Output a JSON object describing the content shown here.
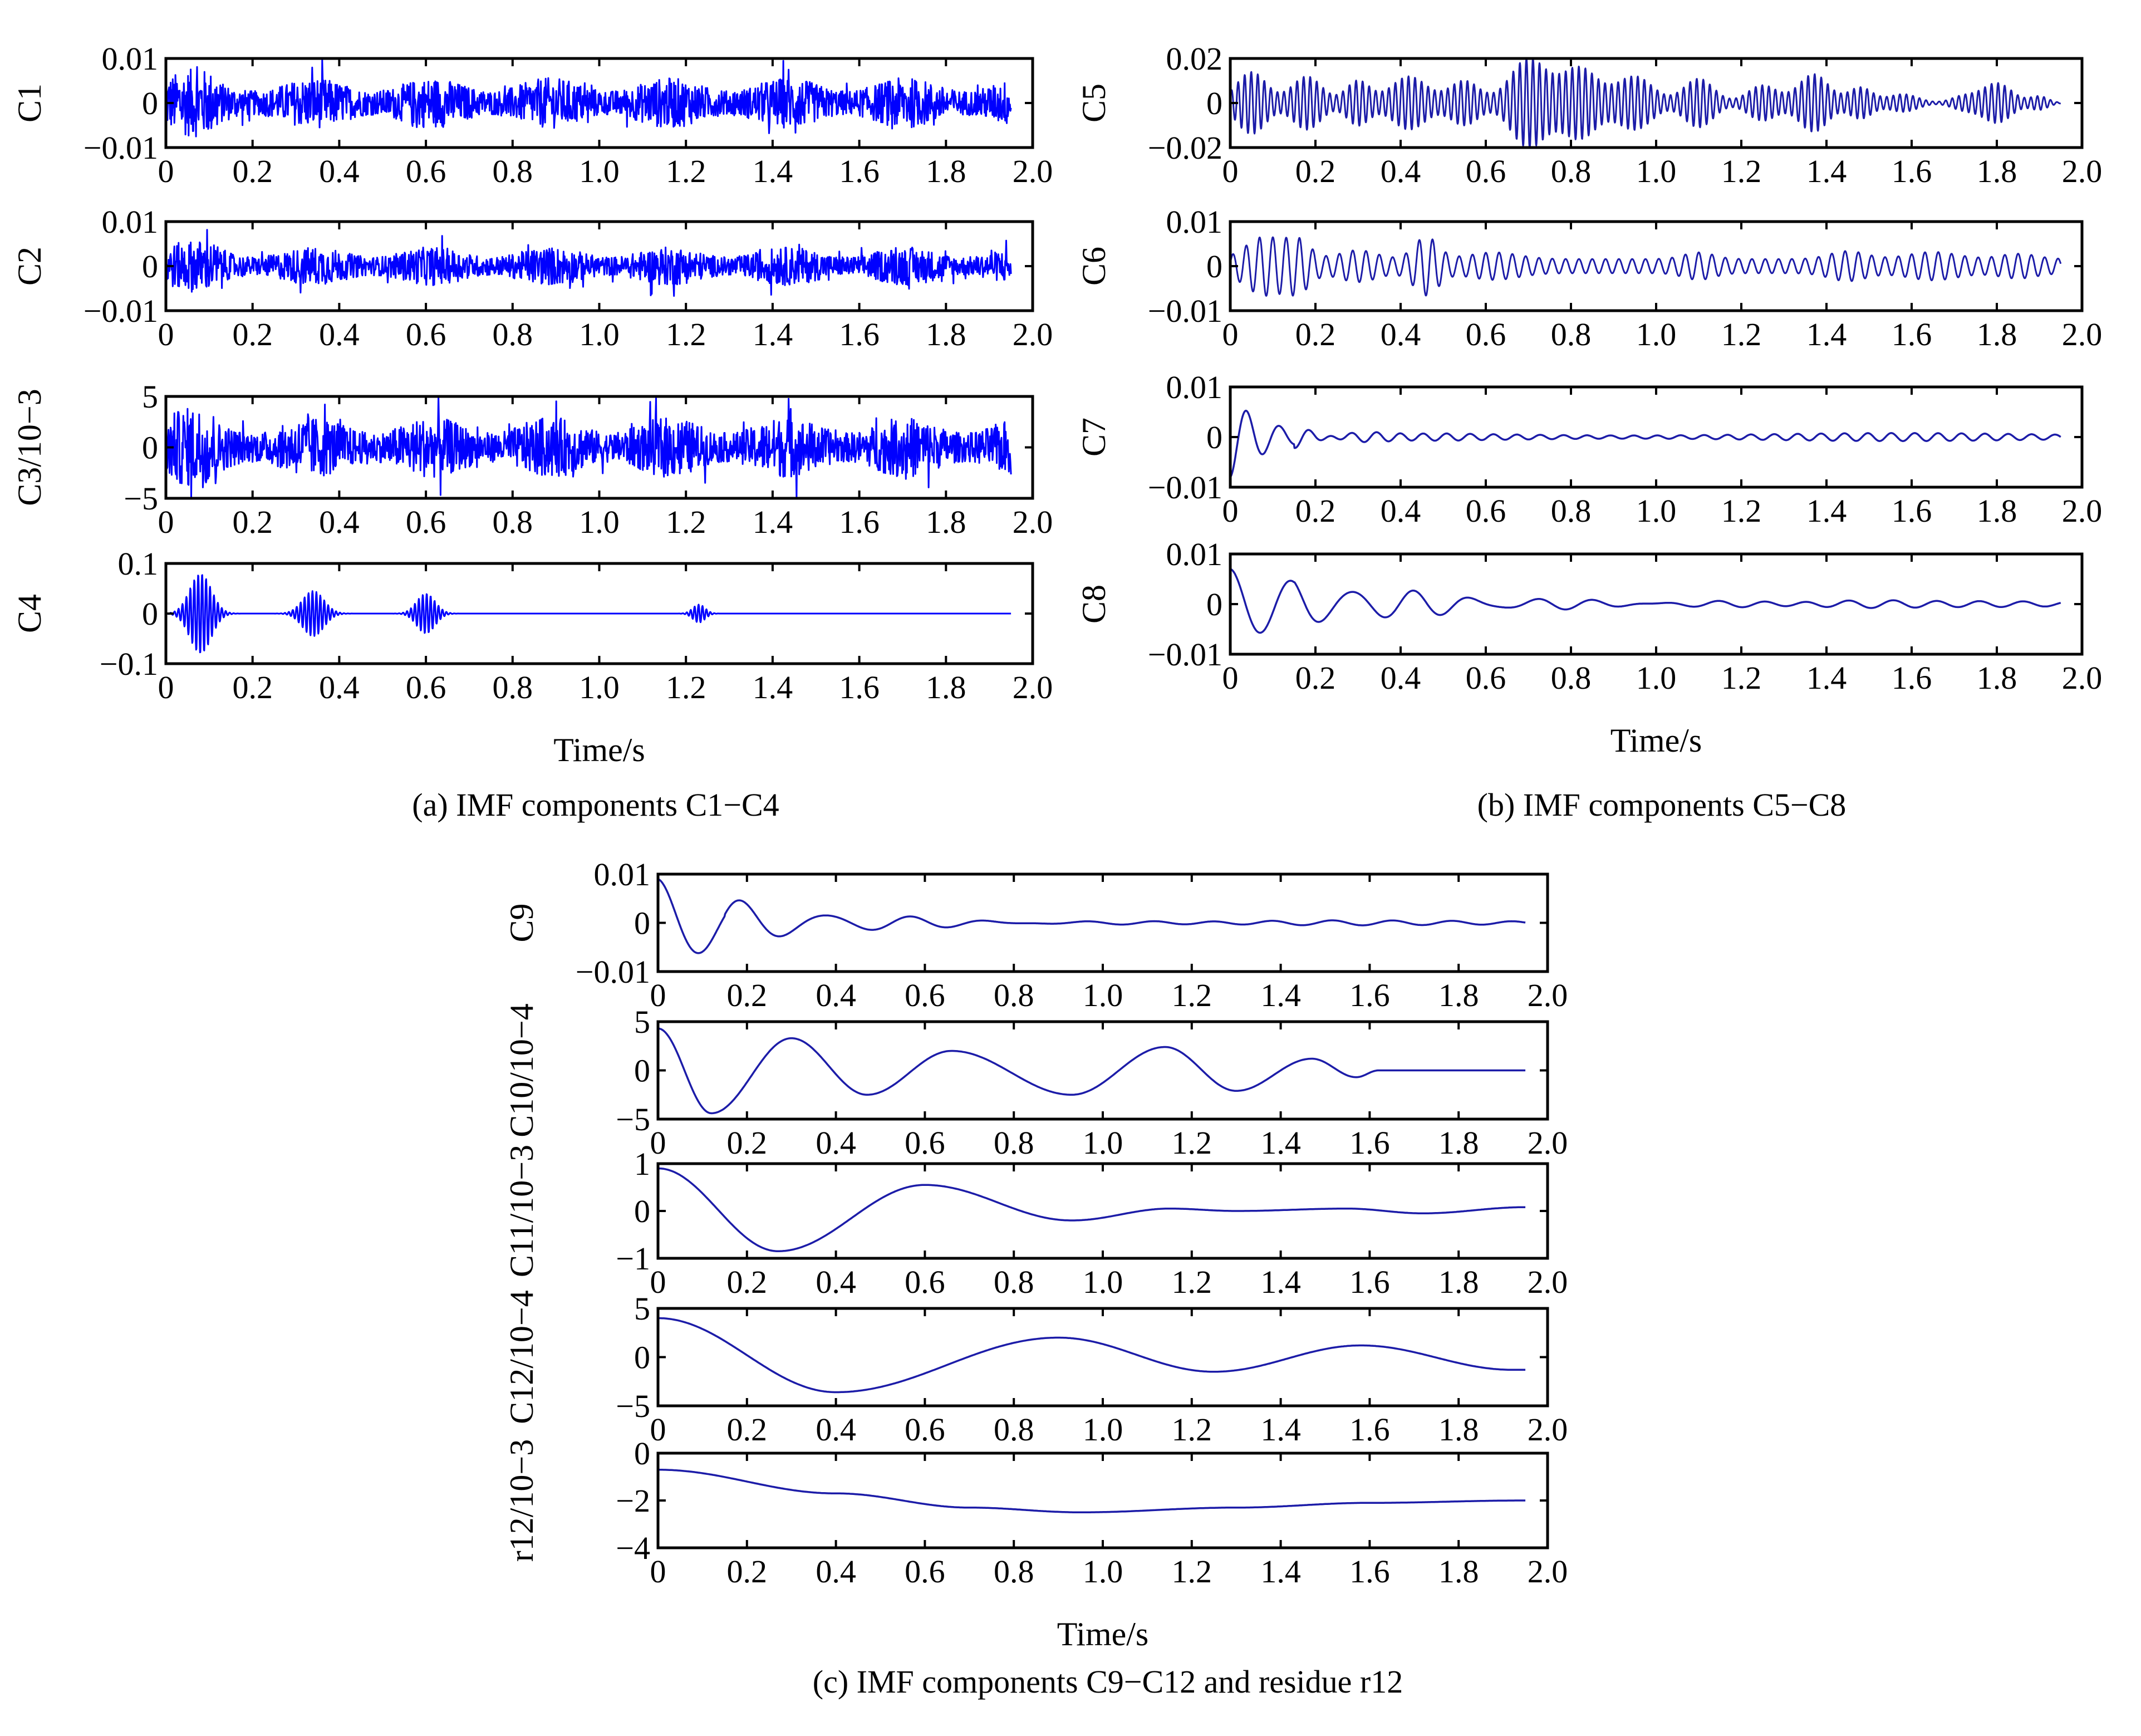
{
  "figure": {
    "captions": [
      "(a) IMF components C1−C4",
      "(b) IMF components C5−C8",
      "(c) IMF components C9−C12 and residue r12"
    ],
    "xlabel": "Time/s"
  },
  "colors": {
    "signal_bright": "#0000ff",
    "signal_dark": "#1c1ca8",
    "axis": "#000000"
  },
  "chart_data": [
    {
      "type": "line",
      "group": "a",
      "ylabel": "C1",
      "yticks": [
        "0.01",
        "0",
        "−0.01"
      ],
      "ylim": [
        -0.01,
        0.01
      ],
      "xlim": [
        0,
        2
      ],
      "xticks": [
        "0",
        "0.2",
        "0.4",
        "0.6",
        "0.8",
        "1.0",
        "1.2",
        "1.4",
        "1.6",
        "1.8",
        "2.0"
      ],
      "color": "#0000ff",
      "style": "noise",
      "amp": 0.0042,
      "xlabel": ""
    },
    {
      "type": "line",
      "group": "a",
      "ylabel": "C2",
      "yticks": [
        "0.01",
        "0",
        "−0.01"
      ],
      "ylim": [
        -0.01,
        0.01
      ],
      "xlim": [
        0,
        2
      ],
      "xticks": [
        "0",
        "0.2",
        "0.4",
        "0.6",
        "0.8",
        "1.0",
        "1.2",
        "1.4",
        "1.6",
        "1.8",
        "2.0"
      ],
      "color": "#0000ff",
      "style": "noise",
      "amp": 0.0032,
      "xlabel": ""
    },
    {
      "type": "line",
      "group": "a",
      "ylabel": "C3/10−3",
      "yticks": [
        "5",
        "0",
        "−5"
      ],
      "ylim": [
        -5,
        5
      ],
      "xlim": [
        0,
        2
      ],
      "xticks": [
        "0",
        "0.2",
        "0.4",
        "0.6",
        "0.8",
        "1.0",
        "1.2",
        "1.4",
        "1.6",
        "1.8",
        "2.0"
      ],
      "color": "#0000ff",
      "style": "noise",
      "amp": 2.2,
      "xlabel": ""
    },
    {
      "type": "line",
      "group": "a",
      "ylabel": "C4",
      "yticks": [
        "0.1",
        "0",
        "−0.1"
      ],
      "ylim": [
        -0.1,
        0.1
      ],
      "xlim": [
        0,
        2
      ],
      "xticks": [
        "0",
        "0.2",
        "0.4",
        "0.6",
        "0.8",
        "1.0",
        "1.2",
        "1.4",
        "1.6",
        "1.8",
        "2.0"
      ],
      "color": "#0000ff",
      "style": "bursts",
      "freq": 110,
      "bursts": [
        [
          0.08,
          0.035,
          0.08
        ],
        [
          0.34,
          0.035,
          0.045
        ],
        [
          0.6,
          0.03,
          0.04
        ],
        [
          1.23,
          0.02,
          0.018
        ]
      ],
      "xlabel": "Time/s"
    },
    {
      "type": "line",
      "group": "b",
      "ylabel": "C5",
      "yticks": [
        "0.02",
        "0",
        "−0.02"
      ],
      "ylim": [
        -0.02,
        0.02
      ],
      "xlim": [
        0,
        2
      ],
      "xticks": [
        "0",
        "0.2",
        "0.4",
        "0.6",
        "0.8",
        "1.0",
        "1.2",
        "1.4",
        "1.6",
        "1.8",
        "2.0"
      ],
      "color": "#1c1ca8",
      "style": "bursts",
      "freq": 65,
      "bursts": [
        [
          0.05,
          0.05,
          0.014
        ],
        [
          0.18,
          0.05,
          0.012
        ],
        [
          0.3,
          0.04,
          0.01
        ],
        [
          0.42,
          0.06,
          0.012
        ],
        [
          0.55,
          0.05,
          0.01
        ],
        [
          0.7,
          0.06,
          0.02
        ],
        [
          0.82,
          0.06,
          0.016
        ],
        [
          0.95,
          0.06,
          0.012
        ],
        [
          1.1,
          0.05,
          0.011
        ],
        [
          1.25,
          0.05,
          0.008
        ],
        [
          1.37,
          0.05,
          0.013
        ],
        [
          1.48,
          0.04,
          0.007
        ],
        [
          1.58,
          0.05,
          0.004
        ],
        [
          1.72,
          0.04,
          0.003
        ],
        [
          1.8,
          0.05,
          0.009
        ],
        [
          1.9,
          0.03,
          0.003
        ]
      ],
      "xlabel": ""
    },
    {
      "type": "line",
      "group": "b",
      "ylabel": "C6",
      "yticks": [
        "0.01",
        "0",
        "−0.01"
      ],
      "ylim": [
        -0.01,
        0.01
      ],
      "xlim": [
        0,
        2
      ],
      "xticks": [
        "0",
        "0.2",
        "0.4",
        "0.6",
        "0.8",
        "1.0",
        "1.2",
        "1.4",
        "1.6",
        "1.8",
        "2.0"
      ],
      "color": "#1c1ca8",
      "style": "bursts",
      "freq": 32,
      "base": 0.0016,
      "bursts": [
        [
          0.08,
          0.06,
          0.005
        ],
        [
          0.16,
          0.04,
          0.004
        ],
        [
          0.3,
          0.06,
          0.002
        ],
        [
          0.46,
          0.04,
          0.005
        ],
        [
          0.62,
          0.08,
          0.0015
        ],
        [
          1.1,
          0.05,
          0.0015
        ],
        [
          1.45,
          0.06,
          0.0018
        ],
        [
          1.65,
          0.08,
          0.0016
        ],
        [
          1.85,
          0.06,
          0.0012
        ]
      ],
      "xlabel": ""
    },
    {
      "type": "line",
      "group": "b",
      "ylabel": "C7",
      "yticks": [
        "0.01",
        "0",
        "−0.01"
      ],
      "ylim": [
        -0.01,
        0.01
      ],
      "xlim": [
        0,
        2
      ],
      "xticks": [
        "0",
        "0.2",
        "0.4",
        "0.6",
        "0.8",
        "1.0",
        "1.2",
        "1.4",
        "1.6",
        "1.8",
        "2.0"
      ],
      "color": "#1c1ca8",
      "style": "decay",
      "freq": 13,
      "a0": -0.008,
      "tau": 0.09,
      "tailamp": 0.0008,
      "xlabel": ""
    },
    {
      "type": "line",
      "group": "b",
      "ylabel": "C8",
      "yticks": [
        "0.01",
        "0",
        "−0.01"
      ],
      "ylim": [
        -0.01,
        0.01
      ],
      "xlim": [
        0,
        2
      ],
      "xticks": [
        "0",
        "0.2",
        "0.4",
        "0.6",
        "0.8",
        "1.0",
        "1.2",
        "1.4",
        "1.6",
        "1.8",
        "2.0"
      ],
      "color": "#1c1ca8",
      "style": "decay",
      "freq": 7,
      "a0": 0.007,
      "tau": 0.35,
      "tailamp": 0.0007,
      "xlabel": "Time/s"
    },
    {
      "type": "line",
      "group": "c",
      "ylabel": "C9",
      "yticks": [
        "0.01",
        "0",
        "−0.01"
      ],
      "ylim": [
        -0.01,
        0.01
      ],
      "xlim": [
        0,
        2
      ],
      "xticks": [
        "0",
        "0.2",
        "0.4",
        "0.6",
        "0.8",
        "1.0",
        "1.2",
        "1.4",
        "1.6",
        "1.8",
        "2.0"
      ],
      "color": "#1c1ca8",
      "style": "decay",
      "freq": 5.3,
      "a0": 0.009,
      "tau": 0.25,
      "tailamp": 0.0005,
      "xlabel": ""
    },
    {
      "type": "line",
      "group": "c",
      "ylabel": "C10/10−4",
      "yticks": [
        "5",
        "0",
        "−5"
      ],
      "ylim": [
        -5,
        5
      ],
      "xlim": [
        0,
        2
      ],
      "xticks": [
        "0",
        "0.2",
        "0.4",
        "0.6",
        "0.8",
        "1.0",
        "1.2",
        "1.4",
        "1.6",
        "1.8",
        "2.0"
      ],
      "color": "#1c1ca8",
      "style": "points",
      "x": [
        0,
        0.12,
        0.3,
        0.47,
        0.66,
        0.93,
        1.14,
        1.3,
        1.47,
        1.57,
        1.62,
        1.95
      ],
      "y": [
        4.3,
        -4.4,
        3.3,
        -2.5,
        2.0,
        -2.5,
        2.4,
        -2.1,
        1.2,
        -0.7,
        0,
        0
      ],
      "xlabel": ""
    },
    {
      "type": "line",
      "group": "c",
      "ylabel": "C11/10−3",
      "yticks": [
        "1",
        "0",
        "−1"
      ],
      "ylim": [
        -1,
        1
      ],
      "xlim": [
        0,
        2
      ],
      "xticks": [
        "0",
        "0.2",
        "0.4",
        "0.6",
        "0.8",
        "1.0",
        "1.2",
        "1.4",
        "1.6",
        "1.8",
        "2.0"
      ],
      "color": "#1c1ca8",
      "style": "points",
      "x": [
        0,
        0.27,
        0.6,
        0.93,
        1.15,
        1.3,
        1.55,
        1.72,
        1.95
      ],
      "y": [
        0.9,
        -0.85,
        0.55,
        -0.2,
        0.05,
        0.0,
        0.05,
        -0.05,
        0.08
      ],
      "xlabel": ""
    },
    {
      "type": "line",
      "group": "c",
      "ylabel": "C12/10−4",
      "yticks": [
        "5",
        "0",
        "−5"
      ],
      "ylim": [
        -5,
        5
      ],
      "xlim": [
        0,
        2
      ],
      "xticks": [
        "0",
        "0.2",
        "0.4",
        "0.6",
        "0.8",
        "1.0",
        "1.2",
        "1.4",
        "1.6",
        "1.8",
        "2.0"
      ],
      "color": "#1c1ca8",
      "style": "points",
      "x": [
        0,
        0.4,
        0.9,
        1.25,
        1.58,
        1.92,
        1.95
      ],
      "y": [
        4.0,
        -3.6,
        2.0,
        -1.5,
        1.2,
        -1.3,
        -1.3
      ],
      "xlabel": ""
    },
    {
      "type": "line",
      "group": "c",
      "ylabel": "r12/10−3",
      "yticks": [
        "0",
        "−2",
        "−4"
      ],
      "ylim": [
        -4,
        0
      ],
      "xlim": [
        0,
        2
      ],
      "xticks": [
        "0",
        "0.2",
        "0.4",
        "0.6",
        "0.8",
        "1.0",
        "1.2",
        "1.4",
        "1.6",
        "1.8",
        "2.0"
      ],
      "color": "#1c1ca8",
      "style": "points",
      "x": [
        0,
        0.4,
        0.7,
        0.95,
        1.3,
        1.6,
        1.95
      ],
      "y": [
        -0.7,
        -1.7,
        -2.3,
        -2.5,
        -2.3,
        -2.1,
        -2.0
      ],
      "xlabel": "Time/s"
    }
  ]
}
